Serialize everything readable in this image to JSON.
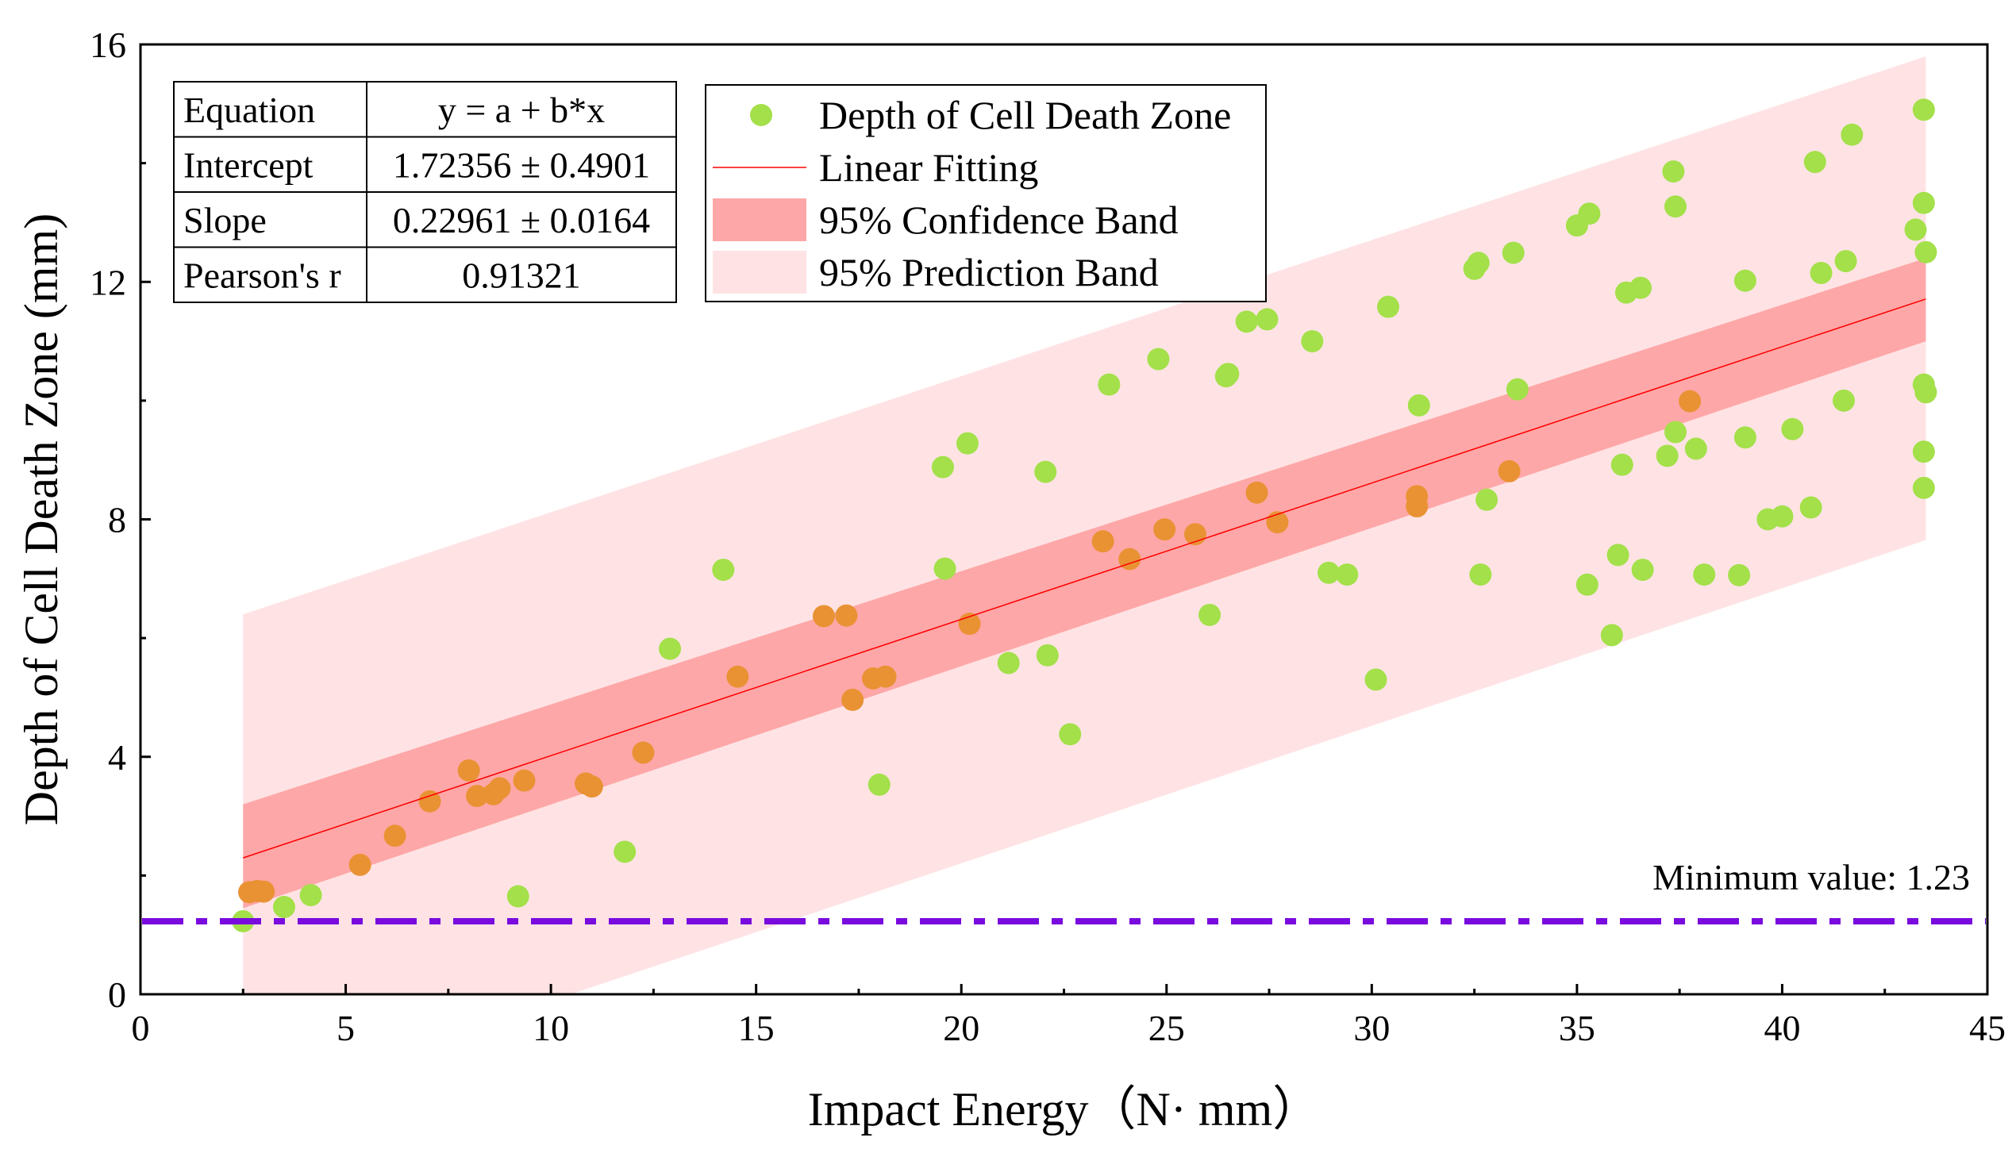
{
  "chart_data": {
    "type": "scatter",
    "xlabel": "Impact Energy（N· mm）",
    "ylabel": "Depth of Cell Death Zone (mm)",
    "xlim": [
      0,
      45
    ],
    "ylim": [
      0,
      16
    ],
    "xticks": [
      0,
      5,
      10,
      15,
      20,
      25,
      30,
      35,
      40,
      45
    ],
    "yticks": [
      0,
      4,
      8,
      12,
      16
    ],
    "grid": false,
    "colors": {
      "point": "#a3e04a",
      "point_in_band": "#e99234",
      "fit_line": "#ff0000",
      "confidence_band": "#fea7a8",
      "prediction_band": "#ffe3e4",
      "minimum_line": "#7a0bde",
      "frame": "#000000"
    },
    "fit": {
      "intercept": 1.72356,
      "slope": 0.22961,
      "x_range": [
        2.5,
        43.5
      ],
      "confidence_band": {
        "lower": [
          1.45,
          11.0
        ],
        "upper": [
          3.2,
          12.4
        ]
      },
      "prediction_band": {
        "lower": [
          -1.85,
          7.65
        ],
        "upper": [
          6.4,
          15.8
        ]
      }
    },
    "minimum": {
      "value": 1.23,
      "label": "Minimum value: 1.23"
    },
    "stats_table": [
      {
        "name": "Equation",
        "value": "y = a + b*x"
      },
      {
        "name": "Intercept",
        "value": "1.72356 ± 0.4901"
      },
      {
        "name": "Slope",
        "value": "0.22961 ± 0.0164"
      },
      {
        "name": "Pearson's r",
        "value": "0.91321"
      }
    ],
    "legend": {
      "position": "top-left",
      "entries": [
        {
          "label": "Depth of Cell Death Zone",
          "kind": "point"
        },
        {
          "label": "Linear Fitting",
          "kind": "line"
        },
        {
          "label": "95% Confidence Band",
          "kind": "confidence"
        },
        {
          "label": "95% Prediction Band",
          "kind": "prediction"
        }
      ]
    },
    "series": [
      {
        "name": "Depth of Cell Death Zone",
        "points": [
          [
            2.5,
            1.23
          ],
          [
            2.65,
            1.72
          ],
          [
            2.85,
            1.74
          ],
          [
            3.0,
            1.73
          ],
          [
            3.5,
            1.47
          ],
          [
            4.15,
            1.67
          ],
          [
            5.35,
            2.18
          ],
          [
            6.2,
            2.67
          ],
          [
            7.05,
            3.25
          ],
          [
            8.0,
            3.77
          ],
          [
            8.2,
            3.34
          ],
          [
            8.6,
            3.37
          ],
          [
            8.75,
            3.47
          ],
          [
            9.2,
            1.65
          ],
          [
            9.35,
            3.6
          ],
          [
            10.85,
            3.55
          ],
          [
            11.0,
            3.5
          ],
          [
            11.8,
            2.4
          ],
          [
            12.25,
            4.07
          ],
          [
            12.9,
            5.82
          ],
          [
            14.2,
            7.15
          ],
          [
            14.55,
            5.35
          ],
          [
            16.65,
            6.37
          ],
          [
            17.2,
            6.38
          ],
          [
            17.35,
            4.96
          ],
          [
            17.85,
            5.32
          ],
          [
            18.0,
            3.53
          ],
          [
            18.15,
            5.35
          ],
          [
            19.55,
            8.88
          ],
          [
            19.6,
            7.17
          ],
          [
            20.15,
            9.28
          ],
          [
            20.2,
            6.24
          ],
          [
            21.15,
            5.58
          ],
          [
            22.05,
            8.8
          ],
          [
            22.1,
            5.71
          ],
          [
            22.65,
            4.38
          ],
          [
            23.45,
            7.63
          ],
          [
            23.6,
            10.27
          ],
          [
            24.1,
            7.33
          ],
          [
            24.8,
            10.7
          ],
          [
            24.95,
            7.83
          ],
          [
            25.7,
            7.75
          ],
          [
            26.05,
            6.39
          ],
          [
            26.45,
            10.41
          ],
          [
            26.5,
            10.45
          ],
          [
            26.95,
            11.33
          ],
          [
            27.2,
            8.45
          ],
          [
            27.45,
            11.37
          ],
          [
            27.7,
            7.95
          ],
          [
            28.55,
            11.0
          ],
          [
            28.95,
            7.1
          ],
          [
            29.4,
            7.07
          ],
          [
            30.1,
            5.3
          ],
          [
            30.4,
            11.58
          ],
          [
            31.1,
            8.39
          ],
          [
            31.1,
            8.22
          ],
          [
            31.15,
            9.92
          ],
          [
            32.5,
            12.22
          ],
          [
            32.6,
            12.32
          ],
          [
            32.65,
            7.07
          ],
          [
            32.8,
            8.33
          ],
          [
            33.35,
            8.81
          ],
          [
            33.45,
            12.49
          ],
          [
            33.55,
            10.19
          ],
          [
            35.0,
            12.95
          ],
          [
            35.25,
            6.9
          ],
          [
            35.3,
            13.15
          ],
          [
            35.85,
            6.05
          ],
          [
            36.0,
            7.4
          ],
          [
            36.1,
            8.92
          ],
          [
            36.2,
            11.82
          ],
          [
            36.55,
            11.9
          ],
          [
            36.6,
            7.15
          ],
          [
            37.2,
            9.07
          ],
          [
            37.35,
            13.86
          ],
          [
            37.4,
            13.27
          ],
          [
            37.4,
            9.47
          ],
          [
            37.75,
            9.99
          ],
          [
            37.9,
            9.19
          ],
          [
            38.1,
            7.07
          ],
          [
            38.95,
            7.06
          ],
          [
            39.1,
            9.38
          ],
          [
            39.1,
            12.02
          ],
          [
            39.65,
            8.0
          ],
          [
            40.0,
            8.05
          ],
          [
            40.25,
            9.52
          ],
          [
            40.7,
            8.2
          ],
          [
            40.8,
            14.02
          ],
          [
            40.95,
            12.15
          ],
          [
            41.5,
            10.0
          ],
          [
            41.55,
            12.35
          ],
          [
            41.7,
            14.48
          ],
          [
            43.25,
            12.88
          ],
          [
            43.45,
            14.9
          ],
          [
            43.45,
            13.33
          ],
          [
            43.5,
            12.5
          ],
          [
            43.45,
            10.27
          ],
          [
            43.5,
            10.14
          ],
          [
            43.45,
            9.14
          ],
          [
            43.45,
            8.53
          ]
        ]
      }
    ]
  }
}
